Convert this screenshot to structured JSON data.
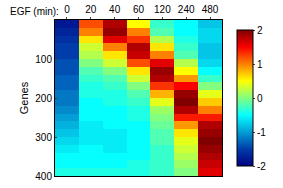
{
  "chart_data": {
    "type": "heatmap",
    "x_label": "EGF (min):",
    "y_label": "Genes",
    "categories": [
      "0",
      "20",
      "40",
      "60",
      "120",
      "240",
      "480"
    ],
    "y": [
      10,
      30,
      50,
      70,
      90,
      110,
      130,
      150,
      170,
      190,
      210,
      230,
      250,
      270,
      290,
      310,
      330,
      350,
      370,
      390
    ],
    "cells": [
      [
        -1.8,
        1.2,
        1.8,
        0.5,
        -0.3,
        -0.5,
        -0.8
      ],
      [
        -1.7,
        1.0,
        1.9,
        1.0,
        -0.2,
        -0.5,
        -0.7
      ],
      [
        -1.6,
        0.6,
        1.6,
        1.3,
        0.2,
        -0.4,
        -0.7
      ],
      [
        -1.5,
        0.3,
        1.0,
        1.8,
        0.6,
        -0.3,
        -0.8
      ],
      [
        -1.5,
        0.2,
        0.6,
        1.7,
        1.0,
        -0.2,
        -0.8
      ],
      [
        -1.4,
        0.0,
        0.3,
        1.2,
        1.6,
        0.2,
        -0.7
      ],
      [
        -1.4,
        -0.2,
        0.0,
        0.6,
        1.9,
        0.5,
        -0.5
      ],
      [
        -1.3,
        -0.3,
        -0.2,
        0.3,
        1.8,
        0.9,
        -0.3
      ],
      [
        -1.3,
        -0.4,
        -0.3,
        0.0,
        1.3,
        1.5,
        0.0
      ],
      [
        -1.2,
        -0.4,
        -0.4,
        -0.2,
        0.8,
        1.9,
        0.4
      ],
      [
        -1.2,
        -0.5,
        -0.4,
        -0.3,
        0.4,
        2.0,
        0.7
      ],
      [
        -1.1,
        -0.5,
        -0.5,
        -0.4,
        0.1,
        1.8,
        1.0
      ],
      [
        -1.0,
        -0.5,
        -0.5,
        -0.4,
        0.0,
        1.4,
        1.4
      ],
      [
        -0.9,
        -0.6,
        -0.5,
        -0.5,
        -0.1,
        0.9,
        1.8
      ],
      [
        -0.8,
        -0.6,
        -0.6,
        -0.5,
        -0.2,
        0.6,
        1.9
      ],
      [
        -0.7,
        -0.6,
        -0.6,
        -0.5,
        -0.2,
        0.4,
        2.0
      ],
      [
        -0.6,
        -0.5,
        -0.6,
        -0.5,
        -0.3,
        0.3,
        1.9
      ],
      [
        -0.5,
        -0.5,
        -0.5,
        -0.5,
        -0.3,
        0.2,
        1.8
      ],
      [
        -0.5,
        -0.5,
        -0.5,
        -0.4,
        -0.3,
        0.1,
        1.7
      ],
      [
        -0.4,
        -0.4,
        -0.4,
        -0.4,
        -0.3,
        0.0,
        1.6
      ]
    ],
    "ylim": [
      400,
      0
    ],
    "yticks": [
      100,
      200,
      300,
      400
    ],
    "colorbar_range": [
      -2,
      2
    ],
    "colorbar_ticks": [
      -2,
      -1,
      0,
      1,
      2
    ],
    "color": "Jet"
  }
}
